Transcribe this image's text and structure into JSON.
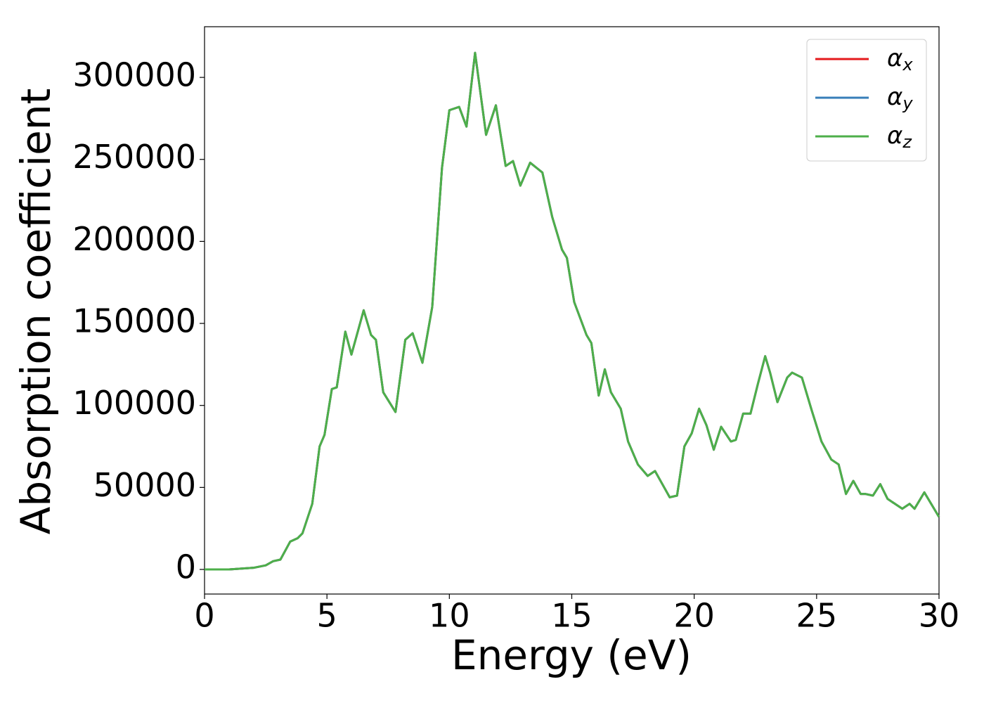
{
  "chart_data": {
    "type": "line",
    "xlabel": "Energy (eV)",
    "ylabel": "Absorption coefficient",
    "x": [
      0,
      1,
      2,
      2.5,
      2.8,
      3.1,
      3.5,
      3.8,
      4.0,
      4.4,
      4.7,
      4.9,
      5.2,
      5.4,
      5.75,
      6.0,
      6.5,
      6.8,
      7.0,
      7.3,
      7.8,
      8.2,
      8.5,
      8.9,
      9.3,
      9.7,
      10.0,
      10.4,
      10.7,
      11.05,
      11.5,
      11.9,
      12.3,
      12.6,
      12.9,
      13.3,
      13.8,
      14.2,
      14.6,
      14.8,
      15.1,
      15.6,
      15.8,
      16.1,
      16.35,
      16.6,
      17.0,
      17.3,
      17.7,
      18.1,
      18.4,
      18.7,
      19.0,
      19.3,
      19.6,
      19.9,
      20.2,
      20.5,
      20.8,
      21.1,
      21.5,
      21.7,
      22.0,
      22.3,
      22.6,
      22.9,
      23.1,
      23.4,
      23.8,
      24.0,
      24.4,
      24.8,
      25.2,
      25.6,
      25.9,
      26.2,
      26.5,
      26.8,
      27.0,
      27.3,
      27.6,
      27.9,
      28.5,
      28.8,
      29.0,
      29.4,
      30
    ],
    "series": [
      {
        "name": "αx",
        "color": "#e41a1c",
        "values": [
          0,
          0,
          1000,
          2500,
          5000,
          6000,
          17000,
          19000,
          22000,
          40000,
          75000,
          82000,
          110000,
          111000,
          145000,
          131000,
          158000,
          143000,
          140000,
          108000,
          96000,
          140000,
          144000,
          126000,
          160000,
          245000,
          280000,
          282000,
          270000,
          315000,
          265000,
          283000,
          246000,
          249000,
          234000,
          248000,
          242000,
          215000,
          195000,
          190000,
          163000,
          143000,
          138000,
          106000,
          122000,
          108000,
          98000,
          78000,
          64000,
          57000,
          60000,
          52000,
          44000,
          45000,
          75000,
          83000,
          98000,
          88000,
          73000,
          87000,
          78000,
          79000,
          95000,
          95000,
          113000,
          130000,
          120000,
          102000,
          117000,
          120000,
          117000,
          97000,
          78000,
          67000,
          64000,
          46000,
          54000,
          46000,
          46000,
          45000,
          52000,
          43000,
          37000,
          40000,
          37000,
          47000,
          32000
        ]
      },
      {
        "name": "αy",
        "color": "#377eb8",
        "values": [
          0,
          0,
          1000,
          2500,
          5000,
          6000,
          17000,
          19000,
          22000,
          40000,
          75000,
          82000,
          110000,
          111000,
          145000,
          131000,
          158000,
          143000,
          140000,
          108000,
          96000,
          140000,
          144000,
          126000,
          160000,
          245000,
          280000,
          282000,
          270000,
          315000,
          265000,
          283000,
          246000,
          249000,
          234000,
          248000,
          242000,
          215000,
          195000,
          190000,
          163000,
          143000,
          138000,
          106000,
          122000,
          108000,
          98000,
          78000,
          64000,
          57000,
          60000,
          52000,
          44000,
          45000,
          75000,
          83000,
          98000,
          88000,
          73000,
          87000,
          78000,
          79000,
          95000,
          95000,
          113000,
          130000,
          120000,
          102000,
          117000,
          120000,
          117000,
          97000,
          78000,
          67000,
          64000,
          46000,
          54000,
          46000,
          46000,
          45000,
          52000,
          43000,
          37000,
          40000,
          37000,
          47000,
          32000
        ]
      },
      {
        "name": "αz",
        "color": "#4daf4a",
        "values": [
          0,
          0,
          1000,
          2500,
          5000,
          6000,
          17000,
          19000,
          22000,
          40000,
          75000,
          82000,
          110000,
          111000,
          145000,
          131000,
          158000,
          143000,
          140000,
          108000,
          96000,
          140000,
          144000,
          126000,
          160000,
          245000,
          280000,
          282000,
          270000,
          315000,
          265000,
          283000,
          246000,
          249000,
          234000,
          248000,
          242000,
          215000,
          195000,
          190000,
          163000,
          143000,
          138000,
          106000,
          122000,
          108000,
          98000,
          78000,
          64000,
          57000,
          60000,
          52000,
          44000,
          45000,
          75000,
          83000,
          98000,
          88000,
          73000,
          87000,
          78000,
          79000,
          95000,
          95000,
          113000,
          130000,
          120000,
          102000,
          117000,
          120000,
          117000,
          97000,
          78000,
          67000,
          64000,
          46000,
          54000,
          46000,
          46000,
          45000,
          52000,
          43000,
          37000,
          40000,
          37000,
          47000,
          32000
        ]
      }
    ],
    "xlim": [
      0,
      30
    ],
    "xticks": [
      0,
      5,
      10,
      15,
      20,
      25,
      30
    ],
    "ylim": [
      -15000,
      330900
    ],
    "yticks": [
      0,
      50000,
      100000,
      150000,
      200000,
      250000,
      300000
    ],
    "legend": "upper right",
    "grid": false
  }
}
